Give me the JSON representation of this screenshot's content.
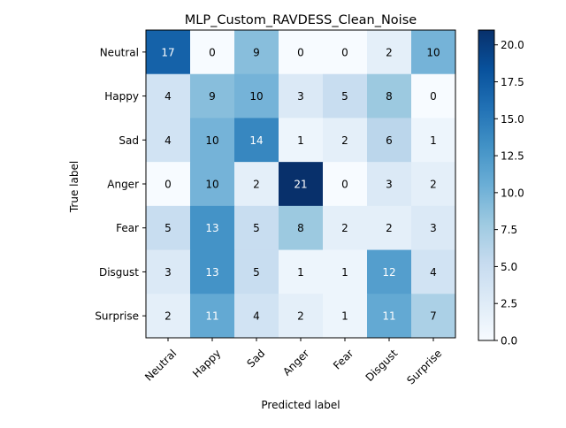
{
  "chart_data": {
    "type": "heatmap",
    "title": "MLP_Custom_RAVDESS_Clean_Noise",
    "xlabel": "Predicted label",
    "ylabel": "True label",
    "x_categories": [
      "Neutral",
      "Happy",
      "Sad",
      "Anger",
      "Fear",
      "Disgust",
      "Surprise"
    ],
    "y_categories": [
      "Neutral",
      "Happy",
      "Sad",
      "Anger",
      "Fear",
      "Disgust",
      "Surprise"
    ],
    "values": [
      [
        17,
        0,
        9,
        0,
        0,
        2,
        10
      ],
      [
        4,
        9,
        10,
        3,
        5,
        8,
        0
      ],
      [
        4,
        10,
        14,
        1,
        2,
        6,
        1
      ],
      [
        0,
        10,
        2,
        21,
        0,
        3,
        2
      ],
      [
        5,
        13,
        5,
        8,
        2,
        2,
        3
      ],
      [
        3,
        13,
        5,
        1,
        1,
        12,
        4
      ],
      [
        2,
        11,
        4,
        2,
        1,
        11,
        7
      ]
    ],
    "colormap": "Blues",
    "vmin": 0,
    "vmax": 21,
    "colorbar": {
      "ticks": [
        0,
        2.5,
        5,
        7.5,
        10,
        12.5,
        15,
        17.5,
        20
      ],
      "tick_labels": [
        "0.0",
        "2.5",
        "5.0",
        "7.5",
        "10.0",
        "12.5",
        "15.0",
        "17.5",
        "20.0"
      ]
    },
    "text_color_dark": "#000000",
    "text_color_light": "#ffffff"
  }
}
